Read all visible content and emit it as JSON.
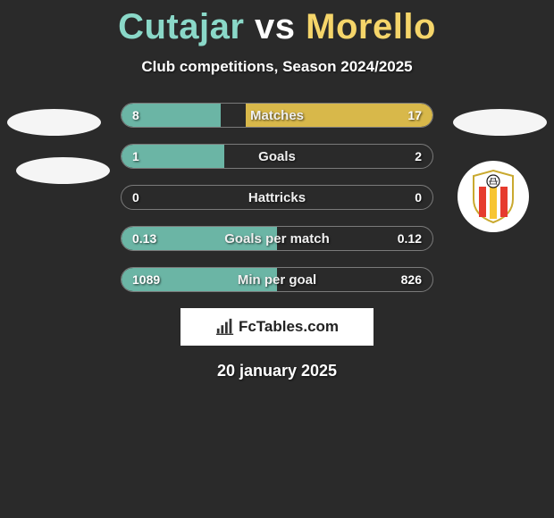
{
  "title": {
    "player1": "Cutajar",
    "vs": "vs",
    "player2": "Morello",
    "player1_color": "#8ad8c8",
    "player2_color": "#f5d56a"
  },
  "subtitle": "Club competitions, Season 2024/2025",
  "date": "20 january 2025",
  "colors": {
    "background": "#2a2a2a",
    "bar_left": "#6bb5a5",
    "bar_right": "#d8b84a",
    "bar_border": "#7a7a7a"
  },
  "bars": [
    {
      "label": "Matches",
      "left_val": "8",
      "right_val": "17",
      "left_pct": 32,
      "right_pct": 60
    },
    {
      "label": "Goals",
      "left_val": "1",
      "right_val": "2",
      "left_pct": 33,
      "right_pct": 0
    },
    {
      "label": "Hattricks",
      "left_val": "0",
      "right_val": "0",
      "left_pct": 0,
      "right_pct": 0
    },
    {
      "label": "Goals per match",
      "left_val": "0.13",
      "right_val": "0.12",
      "left_pct": 50,
      "right_pct": 0
    },
    {
      "label": "Min per goal",
      "left_val": "1089",
      "right_val": "826",
      "left_pct": 50,
      "right_pct": 0
    }
  ],
  "watermark": "FcTables.com",
  "crest_colors": {
    "stripe1": "#e63b2e",
    "stripe2": "#f7c531",
    "ball_bg": "#ffffff",
    "ball_outline": "#1a1a1a"
  }
}
